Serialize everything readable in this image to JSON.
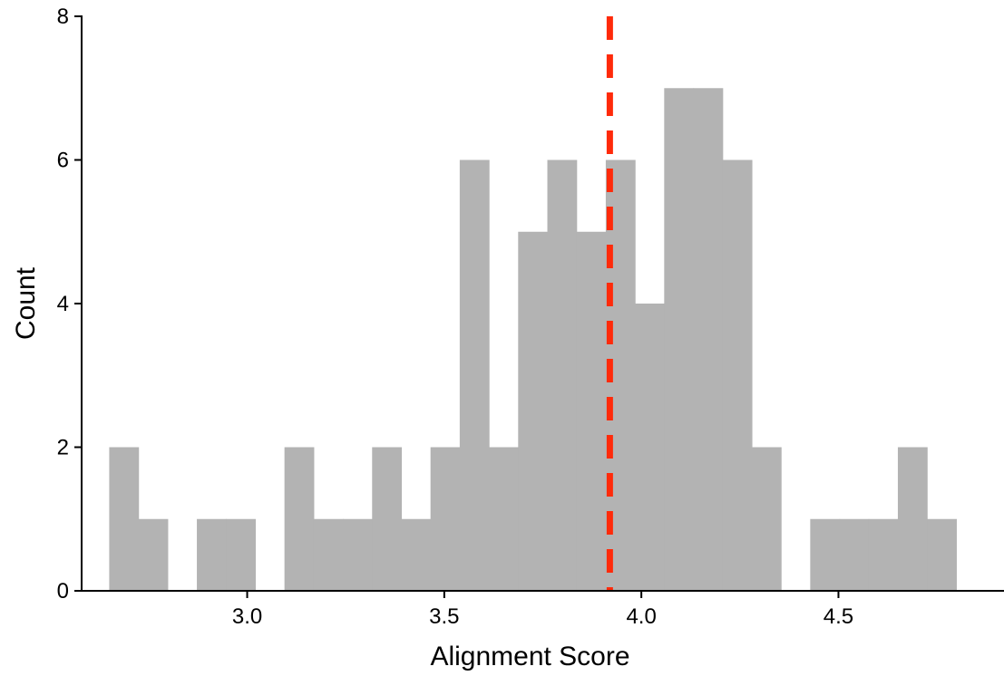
{
  "chart_data": {
    "type": "histogram",
    "xlabel": "Alignment Score",
    "ylabel": "Count",
    "xlim": [
      2.58,
      4.92
    ],
    "ylim": [
      0,
      8
    ],
    "xticks": [
      "3.0",
      "3.5",
      "4.0",
      "4.5"
    ],
    "yticks": [
      "0",
      "2",
      "4",
      "6",
      "8"
    ],
    "bin_start": 2.65,
    "bin_width": 0.0741,
    "counts": [
      2,
      1,
      0,
      1,
      1,
      0,
      2,
      1,
      1,
      2,
      1,
      2,
      6,
      2,
      5,
      6,
      5,
      6,
      4,
      7,
      7,
      6,
      2,
      0,
      1,
      1,
      1,
      2,
      1
    ],
    "reference_line": {
      "x": 3.92,
      "style": "dashed"
    },
    "grid": false,
    "colors": {
      "bars": "#b3b3b3",
      "reference_line": "#ff2a0a",
      "axes": "#000000"
    }
  }
}
